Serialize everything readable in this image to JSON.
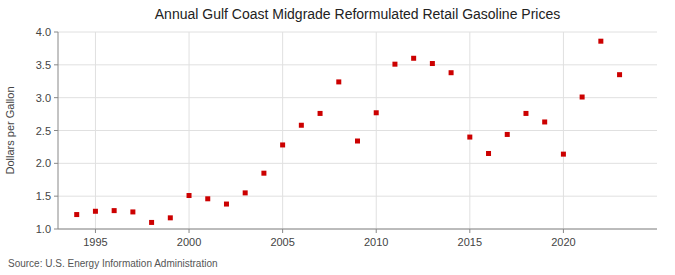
{
  "chart_data": {
    "type": "scatter",
    "title": "Annual Gulf Coast Midgrade Reformulated Retail Gasoline Prices",
    "y_label": "Dollars per Gallon",
    "annotations": [
      "Source: U.S. Energy Information Administration"
    ],
    "x": [
      1994,
      1995,
      1996,
      1997,
      1998,
      1999,
      2000,
      2001,
      2002,
      2003,
      2004,
      2005,
      2006,
      2007,
      2008,
      2009,
      2010,
      2011,
      2012,
      2013,
      2014,
      2015,
      2016,
      2017,
      2018,
      2019,
      2020,
      2021,
      2022,
      2023
    ],
    "values": [
      1.22,
      1.27,
      1.28,
      1.26,
      1.1,
      1.17,
      1.51,
      1.46,
      1.38,
      1.55,
      1.85,
      2.28,
      2.58,
      2.76,
      3.24,
      2.34,
      2.77,
      3.51,
      3.6,
      3.52,
      3.38,
      2.4,
      2.15,
      2.44,
      2.76,
      2.63,
      2.14,
      3.01,
      3.86,
      3.35
    ],
    "color": "#cc0000",
    "marker": "square",
    "xlim": [
      1993,
      2025
    ],
    "ylim": [
      1.0,
      4.0
    ],
    "xticks": [
      1995,
      2000,
      2005,
      2010,
      2015,
      2020
    ],
    "yticks": [
      {
        "value": 1.0,
        "label": "1.0"
      },
      1.5,
      {
        "value": 2.0,
        "label": "2.0"
      },
      2.5,
      {
        "value": 3.0,
        "label": "3.0"
      },
      3.5,
      {
        "value": 4.0,
        "label": "4.0"
      }
    ],
    "grid": true
  }
}
